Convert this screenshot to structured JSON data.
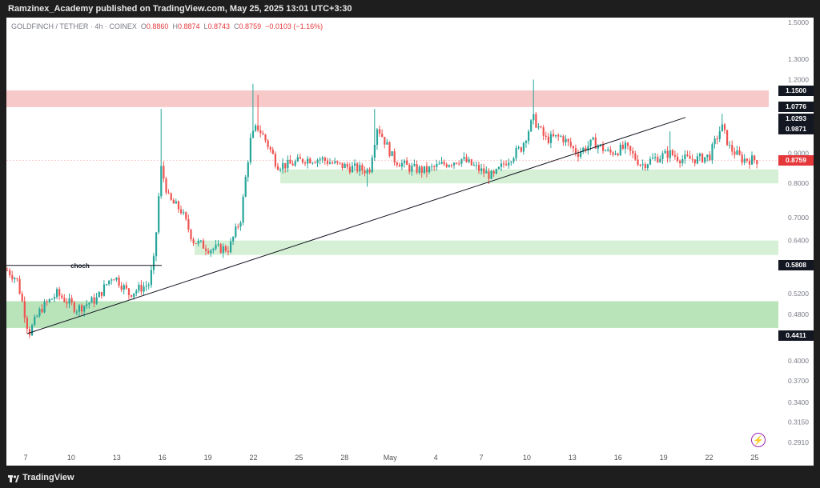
{
  "header": {
    "publisher_text": "Ramzinex_Academy published on TradingView.com, May 25, 2025 13:01 UTC+3:30"
  },
  "legend": {
    "symbol": "GOLDFINCH / TETHER · 4h · COINEX",
    "open_label": "O",
    "open": "0.8860",
    "high_label": "H",
    "high": "0.8874",
    "low_label": "L",
    "low": "0.8743",
    "close_label": "C",
    "close": "0.8759",
    "change": "−0.0103 (−1.16%)"
  },
  "chart_data": {
    "type": "candlestick",
    "y_axis_labels": [
      "1.5000",
      "1.3000",
      "1.2000",
      "0.9000",
      "0.8000",
      "0.7000",
      "0.6400",
      "0.5200",
      "0.4800",
      "0.4000",
      "0.3700",
      "0.3400",
      "0.3150",
      "0.2910"
    ],
    "x_axis_labels": [
      "7",
      "10",
      "13",
      "16",
      "19",
      "22",
      "25",
      "28",
      "May",
      "4",
      "7",
      "10",
      "13",
      "16",
      "19",
      "22",
      "25"
    ],
    "price_markers": [
      {
        "value": "1.1500",
        "style": "dark"
      },
      {
        "value": "1.0776",
        "style": "dark"
      },
      {
        "value": "1.0293",
        "style": "dark"
      },
      {
        "value": "0.9871",
        "style": "dark"
      },
      {
        "value": "0.8759",
        "style": "red"
      },
      {
        "value": "0.5808",
        "style": "dark"
      },
      {
        "value": "0.4411",
        "style": "dark"
      }
    ],
    "zones": [
      {
        "kind": "supply",
        "color": "#f8c9c9",
        "from": 1.0776,
        "to": 1.15
      },
      {
        "kind": "demand",
        "color": "#d6f0d6",
        "from": 0.8,
        "to": 0.845
      },
      {
        "kind": "demand",
        "color": "#d6f0d6",
        "from": 0.605,
        "to": 0.64
      },
      {
        "kind": "demand",
        "color": "#b9e3b9",
        "from": 0.455,
        "to": 0.505
      }
    ],
    "annotations": [
      {
        "text": "choch",
        "price": 0.5808
      }
    ],
    "colors": {
      "up": "#26a69a",
      "down": "#ef5350"
    }
  },
  "ui": {
    "current_price": "0.8759",
    "footer_brand": "TradingView",
    "bolt_icon": "lightning-icon"
  }
}
